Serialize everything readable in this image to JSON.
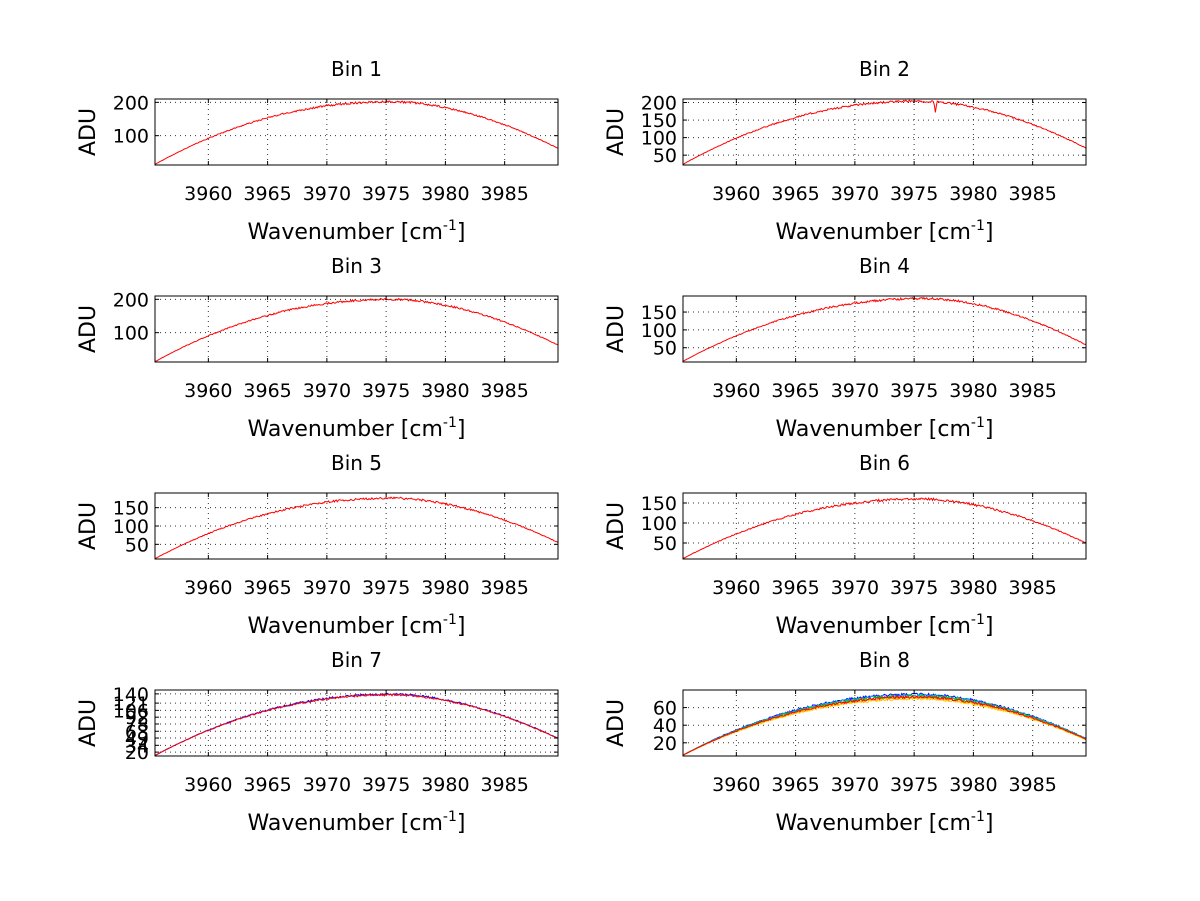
{
  "chart_data": [
    {
      "type": "line",
      "title": "Bin 1",
      "xlabel": "Wavenumber [cm",
      "xlabel_superscript": "-1",
      "xlabel_suffix": "]",
      "ylabel": "ADU",
      "xlim": [
        3955.5,
        3989.5
      ],
      "ylim": [
        12,
        210
      ],
      "xticks": [
        3960,
        3965,
        3970,
        3975,
        3980,
        3985
      ],
      "yticks": [
        100,
        200
      ],
      "curve": {
        "x_start": 3955.5,
        "x_end": 3989.5,
        "peak_x": 3975.5,
        "peak_value": 202,
        "start_value": 14,
        "end_value": 62,
        "noise": 3
      },
      "series": [
        {
          "name": "series-1",
          "color": "#ff0000",
          "offset": 0
        }
      ]
    },
    {
      "type": "line",
      "title": "Bin 2",
      "xlabel": "Wavenumber [cm",
      "xlabel_superscript": "-1",
      "xlabel_suffix": "]",
      "ylabel": "ADU",
      "xlim": [
        3955.5,
        3989.5
      ],
      "ylim": [
        22,
        210
      ],
      "xticks": [
        3960,
        3965,
        3970,
        3975,
        3980,
        3985
      ],
      "yticks": [
        50,
        100,
        150,
        200
      ],
      "curve": {
        "x_start": 3955.5,
        "x_end": 3989.5,
        "peak_x": 3975.5,
        "peak_value": 204,
        "start_value": 24,
        "end_value": 70,
        "noise": 3,
        "dip_x": 3976.8,
        "dip_depth": 35
      },
      "series": [
        {
          "name": "series-1",
          "color": "#ff0000",
          "offset": 0
        }
      ]
    },
    {
      "type": "line",
      "title": "Bin 3",
      "xlabel": "Wavenumber [cm",
      "xlabel_superscript": "-1",
      "xlabel_suffix": "]",
      "ylabel": "ADU",
      "xlim": [
        3955.5,
        3989.5
      ],
      "ylim": [
        12,
        210
      ],
      "xticks": [
        3960,
        3965,
        3970,
        3975,
        3980,
        3985
      ],
      "yticks": [
        100,
        200
      ],
      "curve": {
        "x_start": 3955.5,
        "x_end": 3989.5,
        "peak_x": 3975.5,
        "peak_value": 200,
        "start_value": 13,
        "end_value": 63,
        "noise": 3
      },
      "series": [
        {
          "name": "series-1",
          "color": "#ff0000",
          "offset": 0
        }
      ]
    },
    {
      "type": "line",
      "title": "Bin 4",
      "xlabel": "Wavenumber [cm",
      "xlabel_superscript": "-1",
      "xlabel_suffix": "]",
      "ylabel": "ADU",
      "xlim": [
        3955.5,
        3989.5
      ],
      "ylim": [
        10,
        195
      ],
      "xticks": [
        3960,
        3965,
        3970,
        3975,
        3980,
        3985
      ],
      "yticks": [
        50,
        100,
        150
      ],
      "curve": {
        "x_start": 3955.5,
        "x_end": 3989.5,
        "peak_x": 3976,
        "peak_value": 188,
        "start_value": 12,
        "end_value": 58,
        "noise": 3
      },
      "series": [
        {
          "name": "series-1",
          "color": "#ff0000",
          "offset": 0
        }
      ]
    },
    {
      "type": "line",
      "title": "Bin 5",
      "xlabel": "Wavenumber [cm",
      "xlabel_superscript": "-1",
      "xlabel_suffix": "]",
      "ylabel": "ADU",
      "xlim": [
        3955.5,
        3989.5
      ],
      "ylim": [
        10,
        190
      ],
      "xticks": [
        3960,
        3965,
        3970,
        3975,
        3980,
        3985
      ],
      "yticks": [
        50,
        100,
        150
      ],
      "curve": {
        "x_start": 3955.5,
        "x_end": 3989.5,
        "peak_x": 3975.5,
        "peak_value": 176,
        "start_value": 11,
        "end_value": 55,
        "noise": 3
      },
      "series": [
        {
          "name": "series-1",
          "color": "#ff0000",
          "offset": 0
        }
      ]
    },
    {
      "type": "line",
      "title": "Bin 6",
      "xlabel": "Wavenumber [cm",
      "xlabel_superscript": "-1",
      "xlabel_suffix": "]",
      "ylabel": "ADU",
      "xlim": [
        3955.5,
        3989.5
      ],
      "ylim": [
        10,
        175
      ],
      "xticks": [
        3960,
        3965,
        3970,
        3975,
        3980,
        3985
      ],
      "yticks": [
        50,
        100,
        150
      ],
      "curve": {
        "x_start": 3955.5,
        "x_end": 3989.5,
        "peak_x": 3975.5,
        "peak_value": 160,
        "start_value": 11,
        "end_value": 50,
        "noise": 3
      },
      "series": [
        {
          "name": "series-1",
          "color": "#ff0000",
          "offset": 0
        }
      ]
    },
    {
      "type": "line",
      "title": "Bin 7",
      "xlabel": "Wavenumber [cm",
      "xlabel_superscript": "-1",
      "xlabel_suffix": "]",
      "ylabel": "ADU",
      "xlim": [
        3955.5,
        3989.5
      ],
      "ylim": [
        12,
        148
      ],
      "xticks": [
        3960,
        3965,
        3970,
        3975,
        3980,
        3985
      ],
      "yticks": [
        20,
        34,
        49,
        63,
        78,
        92,
        106,
        121,
        140
      ],
      "yticklabels_note": "overlapping labels as drawn",
      "curve": {
        "x_start": 3955.5,
        "x_end": 3989.5,
        "peak_x": 3975.5,
        "peak_value": 138,
        "start_value": 13,
        "end_value": 48,
        "noise": 2
      },
      "series": [
        {
          "name": "series-1",
          "color": "#0000ff",
          "offset": 1.2
        },
        {
          "name": "series-2",
          "color": "#ff0000",
          "offset": 0
        }
      ]
    },
    {
      "type": "line",
      "title": "Bin 8",
      "xlabel": "Wavenumber [cm",
      "xlabel_superscript": "-1",
      "xlabel_suffix": "]",
      "ylabel": "ADU",
      "xlim": [
        3955.5,
        3989.5
      ],
      "ylim": [
        5,
        80
      ],
      "xticks": [
        3960,
        3965,
        3970,
        3975,
        3980,
        3985
      ],
      "yticks": [
        20,
        40,
        60
      ],
      "curve": {
        "x_start": 3955.5,
        "x_end": 3989.5,
        "peak_x": 3975.5,
        "peak_value": 72,
        "start_value": 6,
        "end_value": 24,
        "noise": 1.5
      },
      "series": [
        {
          "name": "series-1",
          "color": "#0000ff",
          "offset": 3
        },
        {
          "name": "series-2",
          "color": "#00aaff",
          "offset": 2
        },
        {
          "name": "series-3",
          "color": "#00cc00",
          "offset": 1
        },
        {
          "name": "series-4",
          "color": "#ff8800",
          "offset": -1
        },
        {
          "name": "series-5",
          "color": "#ffcc00",
          "offset": -2
        },
        {
          "name": "series-6",
          "color": "#ff0000",
          "offset": 0
        }
      ]
    }
  ]
}
